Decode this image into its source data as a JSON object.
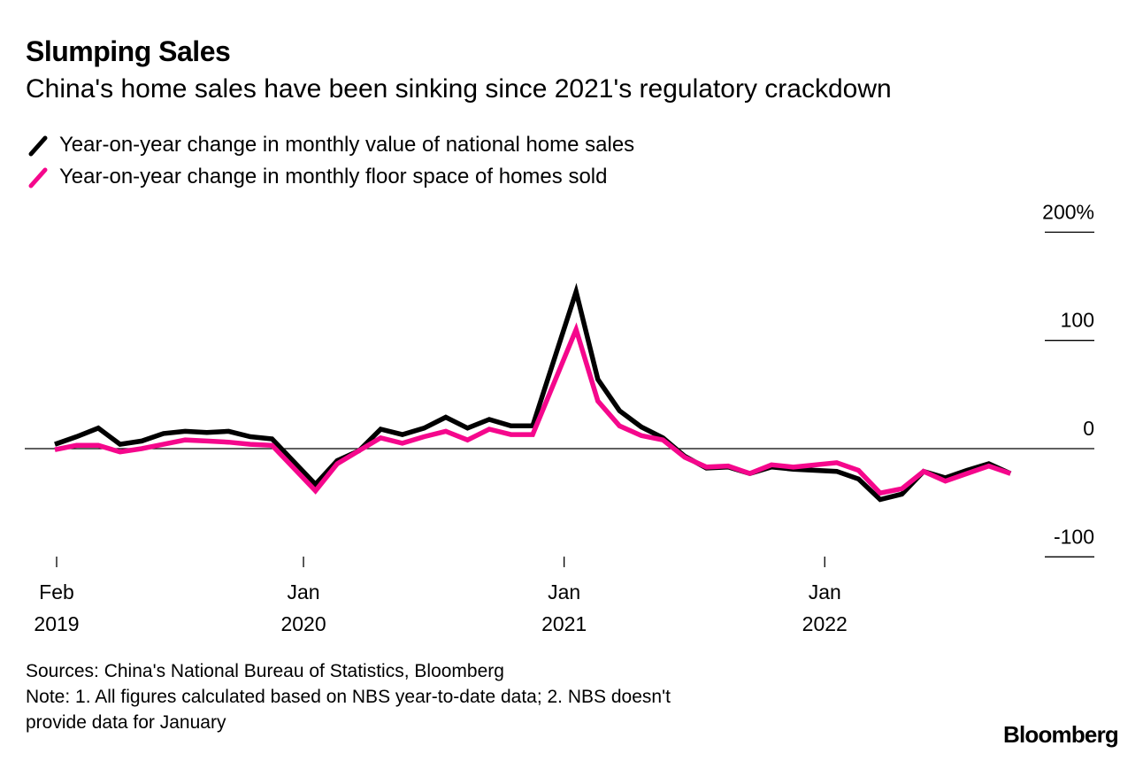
{
  "header": {
    "title": "Slumping Sales",
    "subtitle": "China's home sales have been sinking since 2021's regulatory crackdown"
  },
  "legend": [
    {
      "label": "Year-on-year change in monthly value of national home sales",
      "color": "#000000"
    },
    {
      "label": "Year-on-year change in monthly floor space of homes sold",
      "color": "#F5078C"
    }
  ],
  "footer": {
    "sources": "Sources: China's National Bureau of Statistics, Bloomberg",
    "note_line1": "Note: 1. All figures calculated based on NBS year-to-date data; 2. NBS doesn't",
    "note_line2": "provide data for January",
    "logo": "Bloomberg"
  },
  "chart_data": {
    "type": "line",
    "title": "Slumping Sales",
    "subtitle": "China's home sales have been sinking since 2021's regulatory crackdown",
    "xlabel": "",
    "ylabel": "",
    "ylim": [
      -100,
      200
    ],
    "y_ticks": [
      {
        "value": 200,
        "label": "200%"
      },
      {
        "value": 100,
        "label": "100"
      },
      {
        "value": 0,
        "label": "0"
      },
      {
        "value": -100,
        "label": "-100"
      }
    ],
    "x_ticks": [
      {
        "date": "2019-02",
        "line1": "Feb",
        "line2": "2019"
      },
      {
        "date": "2020-01",
        "line1": "Jan",
        "line2": "2020"
      },
      {
        "date": "2021-01",
        "line1": "Jan",
        "line2": "2021"
      },
      {
        "date": "2022-01",
        "line1": "Jan",
        "line2": "2022"
      }
    ],
    "grid": false,
    "legend_position": "top-left",
    "x": [
      "2019-02",
      "2019-03",
      "2019-04",
      "2019-05",
      "2019-06",
      "2019-07",
      "2019-08",
      "2019-09",
      "2019-10",
      "2019-11",
      "2019-12",
      "2020-02",
      "2020-03",
      "2020-04",
      "2020-05",
      "2020-06",
      "2020-07",
      "2020-08",
      "2020-09",
      "2020-10",
      "2020-11",
      "2020-12",
      "2021-02",
      "2021-03",
      "2021-04",
      "2021-05",
      "2021-06",
      "2021-07",
      "2021-08",
      "2021-09",
      "2021-10",
      "2021-11",
      "2021-12",
      "2022-02",
      "2022-03",
      "2022-04",
      "2022-05",
      "2022-06",
      "2022-07",
      "2022-08",
      "2022-09",
      "2022-10"
    ],
    "series": [
      {
        "name": "Year-on-year change in monthly value of national home sales",
        "color": "#000000",
        "values": [
          4,
          11,
          19,
          4,
          7,
          14,
          16,
          15,
          16,
          11,
          9,
          -33,
          -11,
          -2,
          18,
          13,
          19,
          29,
          19,
          27,
          21,
          21,
          145,
          64,
          35,
          20,
          10,
          -7,
          -18,
          -17,
          -23,
          -17,
          -19,
          -21,
          -28,
          -47,
          -42,
          -21,
          -27,
          -20,
          -14,
          -23
        ]
      },
      {
        "name": "Year-on-year change in monthly floor space of homes sold",
        "color": "#F5078C",
        "values": [
          -1,
          3,
          3,
          -3,
          0,
          4,
          8,
          7,
          6,
          4,
          3,
          -39,
          -14,
          -2,
          10,
          5,
          11,
          16,
          8,
          18,
          13,
          13,
          110,
          44,
          21,
          12,
          8,
          -8,
          -17,
          -16,
          -23,
          -15,
          -17,
          -13,
          -20,
          -41,
          -37,
          -21,
          -30,
          -23,
          -16,
          -23
        ]
      }
    ]
  }
}
